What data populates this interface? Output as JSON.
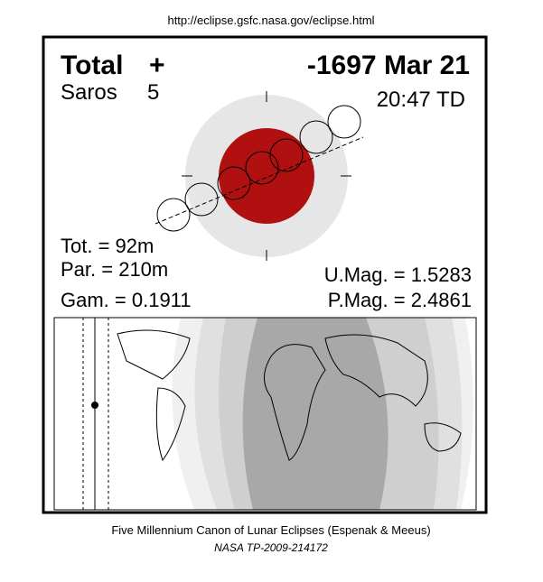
{
  "header": {
    "url": "http://eclipse.gsfc.nasa.gov/eclipse.html",
    "type": "Total",
    "symbol": "+",
    "date": "-1697 Mar 21",
    "saros_label": "Saros",
    "saros": "5",
    "time": "20:47 TD"
  },
  "stats": {
    "total": "Tot. =  92m",
    "partial": "Par. = 210m",
    "gamma": "Gam. = 0.1911",
    "umag": "U.Mag. = 1.5283",
    "pmag": "P.Mag. = 2.4861"
  },
  "footer": {
    "canon": "Five Millennium Canon of Lunar Eclipses (Espenak & Meeus)",
    "ref": "NASA TP-2009-214172"
  }
}
